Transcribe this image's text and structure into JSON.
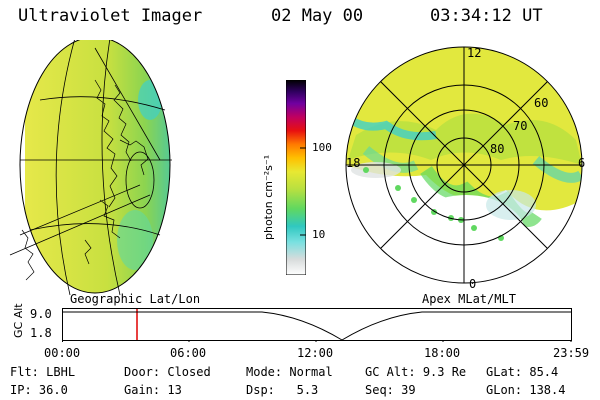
{
  "header": {
    "instrument": "Ultraviolet Imager",
    "date": "02 May 00",
    "time": "03:34:12 UT"
  },
  "colorbar": {
    "unit_label": "photon cm⁻²s⁻¹",
    "ticks": [
      "100",
      "10"
    ],
    "scale": "log"
  },
  "polar": {
    "mlt_labels": [
      "12",
      "18",
      "6",
      "0"
    ],
    "lat_labels": [
      "60",
      "70",
      "80"
    ]
  },
  "panels": {
    "left_label": "Geographic Lat/Lon",
    "right_label": "Apex MLat/MLT"
  },
  "altitude_plot": {
    "y_label": "GC Alt",
    "y_ticks": [
      "9.0",
      "1.8"
    ],
    "x_ticks": [
      "00:00",
      "06:00",
      "12:00",
      "18:00",
      "23:59"
    ],
    "marker_time": "03:34"
  },
  "status": {
    "flt_label": "Flt:",
    "flt_value": "LBHL",
    "door_label": "Door:",
    "door_value": "Closed",
    "mode_label": "Mode:",
    "mode_value": "Normal",
    "gcalt_label": "GC Alt:",
    "gcalt_value": "9.3 Re",
    "glat_label": "GLat:",
    "glat_value": "85.4",
    "ip_label": "IP:",
    "ip_value": "36.0",
    "gain_label": "Gain:",
    "gain_value": "13",
    "dsp_label": "Dsp:",
    "dsp_value": "5.3",
    "seq_label": "Seq:",
    "seq_value": "39",
    "glon_label": "GLon:",
    "glon_value": "138.4"
  },
  "colors": {
    "marker": "#e00000",
    "aurora_yellow": "#e8e832",
    "aurora_green": "#5cd65c",
    "aurora_cyan": "#40d8d0"
  }
}
